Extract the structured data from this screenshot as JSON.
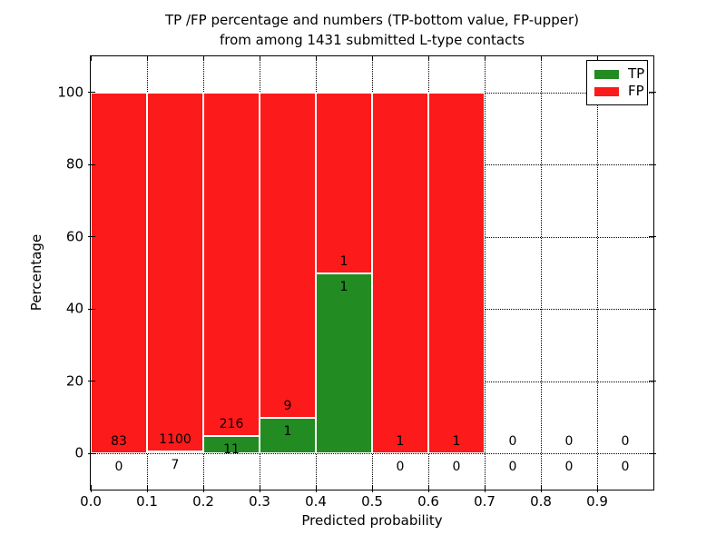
{
  "figure": {
    "title_line1": "TP /FP percentage and numbers (TP-bottom value, FP-upper)",
    "title_line2": "from among 1431 submitted L-type contacts",
    "xlabel": "Predicted probability",
    "ylabel": "Percentage"
  },
  "legend": {
    "position": "upper right",
    "items": [
      {
        "label": "TP",
        "color": "#228b22"
      },
      {
        "label": "FP",
        "color": "#fc1a1a"
      }
    ]
  },
  "chart_data": {
    "type": "bar",
    "stacked": true,
    "normalized_to_percent": true,
    "title": "TP /FP percentage and numbers (TP-bottom value, FP-upper) from among 1431 submitted L-type contacts",
    "xlabel": "Predicted probability",
    "ylabel": "Percentage",
    "total_contacts": 1431,
    "bin_width": 0.1,
    "categories": [
      "0.0-0.1",
      "0.1-0.2",
      "0.2-0.3",
      "0.3-0.4",
      "0.4-0.5",
      "0.5-0.6",
      "0.6-0.7",
      "0.7-0.8",
      "0.8-0.9",
      "0.9-1.0"
    ],
    "series": [
      {
        "name": "TP",
        "color": "#228b22",
        "counts": [
          0,
          7,
          11,
          1,
          1,
          0,
          0,
          0,
          0,
          0
        ]
      },
      {
        "name": "FP",
        "color": "#fc1a1a",
        "counts": [
          83,
          1100,
          216,
          9,
          1,
          1,
          1,
          0,
          0,
          0
        ]
      }
    ],
    "tp_percent_of_bin": [
      0,
      0.6,
      4.8,
      10.0,
      50.0,
      0,
      0,
      0,
      0,
      0
    ],
    "fp_percent_of_bin": [
      100,
      99.4,
      95.2,
      90.0,
      50.0,
      100,
      100,
      0,
      0,
      0
    ],
    "xticks": [
      "0.0",
      "0.1",
      "0.2",
      "0.3",
      "0.4",
      "0.5",
      "0.6",
      "0.7",
      "0.8",
      "0.9"
    ],
    "yticks": [
      0,
      20,
      40,
      60,
      80,
      100
    ],
    "xlim": [
      0.0,
      1.0
    ],
    "ylim": [
      -10,
      110
    ],
    "grid": "dotted black, both axes",
    "bar_edge_color": "#ffffff",
    "legend_position": "upper right"
  }
}
